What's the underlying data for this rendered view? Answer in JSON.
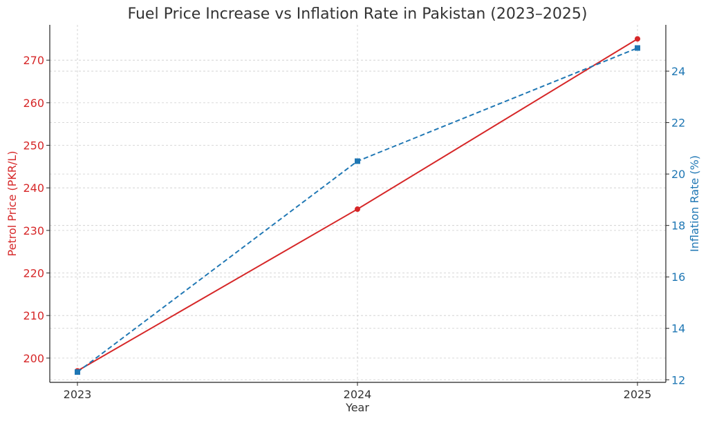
{
  "chart_data": {
    "type": "line",
    "title": "Fuel Price Increase vs Inflation Rate in Pakistan (2023–2025)",
    "xlabel": "Year",
    "x": [
      2023,
      2024,
      2025
    ],
    "x_tick_labels": [
      "2023",
      "2024",
      "2025"
    ],
    "ylabel_left": "Petrol Price (PKR/L)",
    "ylabel_right": "Inflation Rate (%)",
    "ylim_left": [
      194.3,
      278.3
    ],
    "ylim_right": [
      11.9,
      25.8
    ],
    "yticks_left": [
      200,
      210,
      220,
      230,
      240,
      250,
      260,
      270
    ],
    "yticks_right": [
      12,
      14,
      16,
      18,
      20,
      22,
      24
    ],
    "grid": true,
    "series": [
      {
        "axis": "left",
        "values": [
          197,
          235,
          275
        ],
        "color": "#d62728",
        "line_style": "solid",
        "marker": "circle"
      },
      {
        "axis": "right",
        "values": [
          12.3,
          20.5,
          24.9
        ],
        "color": "#1f77b4",
        "line_style": "dashed",
        "marker": "square"
      }
    ],
    "colors": {
      "left_axis": "#d62728",
      "right_axis": "#1f77b4",
      "text": "#333333",
      "grid": "#cccccc",
      "spine": "#222222"
    }
  }
}
